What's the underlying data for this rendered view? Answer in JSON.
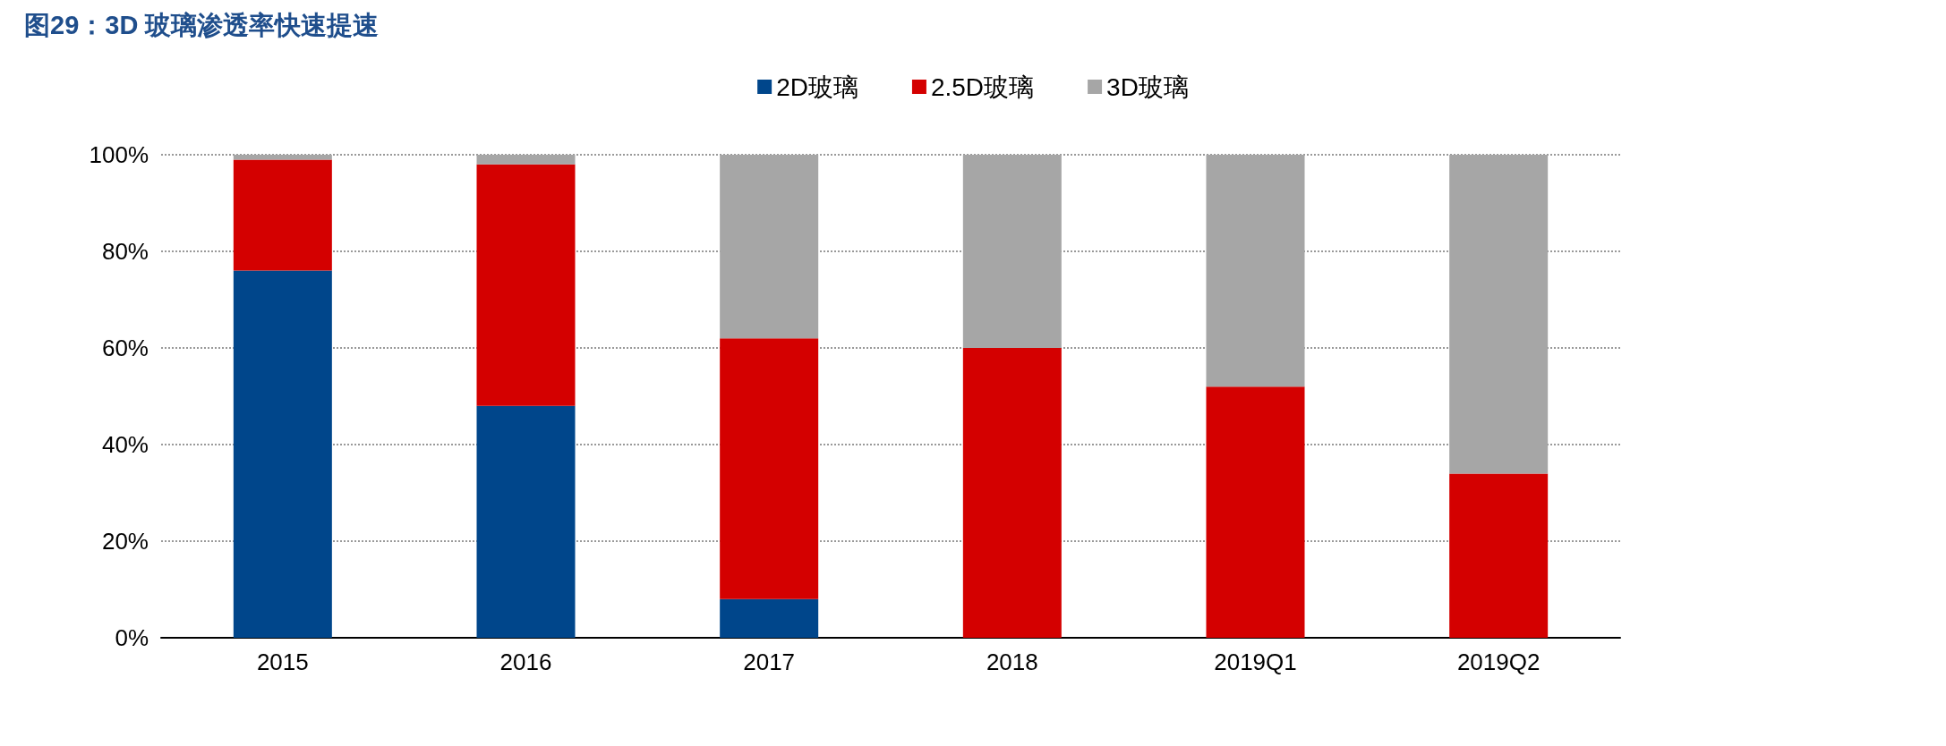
{
  "chart_data": {
    "type": "bar",
    "title": "图29：3D 玻璃渗透率快速提速",
    "categories": [
      "2015",
      "2016",
      "2017",
      "2018",
      "2019Q1",
      "2019Q2"
    ],
    "series": [
      {
        "name": "2D玻璃",
        "color": "#00468b",
        "values": [
          76,
          48,
          8,
          0,
          0,
          0
        ]
      },
      {
        "name": "2.5D玻璃",
        "color": "#d40000",
        "values": [
          23,
          50,
          54,
          60,
          52,
          34
        ]
      },
      {
        "name": "3D玻璃",
        "color": "#a6a6a6",
        "values": [
          1,
          2,
          38,
          40,
          48,
          66
        ]
      }
    ],
    "stacked": true,
    "ylim": [
      0,
      100
    ],
    "yticks": [
      {
        "value": 0,
        "label": "0%"
      },
      {
        "value": 20,
        "label": "20%"
      },
      {
        "value": 40,
        "label": "40%"
      },
      {
        "value": 60,
        "label": "60%"
      },
      {
        "value": 80,
        "label": "80%"
      },
      {
        "value": 100,
        "label": "100%"
      }
    ],
    "grid": "y",
    "legend": "top"
  }
}
